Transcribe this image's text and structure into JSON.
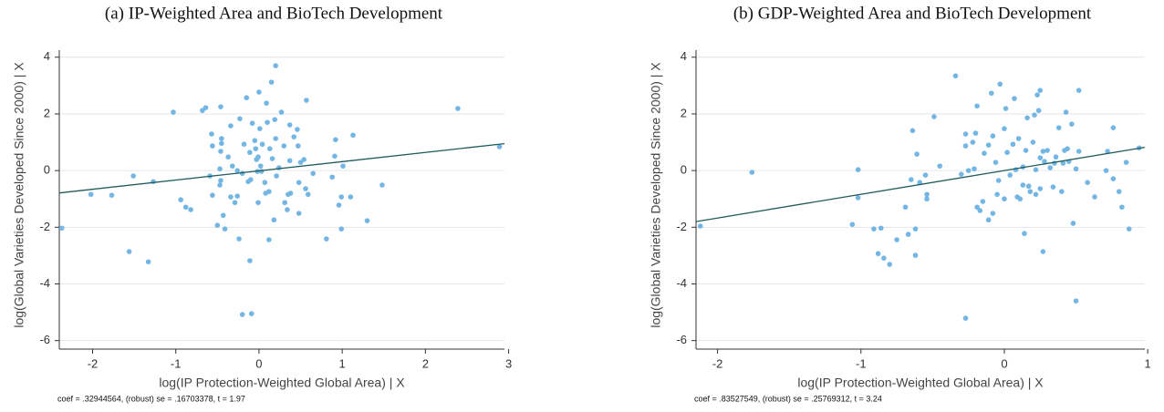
{
  "chart_data": [
    {
      "type": "scatter",
      "title": "(a) IP-Weighted Area and BioTech Development",
      "xlabel": "log(IP Protection-Weighted Global Area) | X",
      "ylabel": "log(Global Varieties Developed Since 2000) | X",
      "note": "coef = .32944564, (robust) se = .16703378, t = 1.97",
      "color": "#74b6e3",
      "x": [
        -2.37,
        -2.02,
        -1.77,
        -1.56,
        -1.51,
        -1.33,
        -1.27,
        -1.03,
        -0.94,
        -0.88,
        -0.82,
        -0.68,
        -0.64,
        -0.57,
        -0.56,
        -0.59,
        -0.56,
        -0.5,
        -0.46,
        -0.45,
        -0.45,
        -0.46,
        -0.47,
        -0.46,
        -0.47,
        -0.43,
        -0.41,
        -0.37,
        -0.34,
        -0.32,
        -0.34,
        -0.29,
        -0.26,
        -0.26,
        -0.24,
        -0.23,
        -0.2,
        -0.2,
        -0.18,
        -0.15,
        -0.13,
        -0.1,
        -0.11,
        -0.11,
        -0.09,
        -0.08,
        -0.05,
        -0.04,
        -0.03,
        -0.02,
        -0.01,
        -0.01,
        0.0,
        0.01,
        0.02,
        0.03,
        0.04,
        0.07,
        0.08,
        0.09,
        0.1,
        0.12,
        0.12,
        0.13,
        0.15,
        0.16,
        0.18,
        0.2,
        0.19,
        0.2,
        0.21,
        0.24,
        0.27,
        0.3,
        0.31,
        0.34,
        0.35,
        0.37,
        0.37,
        0.38,
        0.42,
        0.46,
        0.47,
        0.48,
        0.48,
        0.5,
        0.54,
        0.56,
        0.57,
        0.59,
        0.65,
        0.81,
        0.88,
        0.92,
        0.91,
        0.96,
        0.99,
        0.99,
        1.01,
        1.1,
        1.13,
        1.3,
        1.48,
        2.39,
        2.89
      ],
      "y": [
        -2.03,
        -0.84,
        -0.87,
        -2.86,
        -0.19,
        -3.22,
        -0.39,
        2.06,
        -1.03,
        -1.29,
        -1.38,
        2.12,
        2.22,
        1.29,
        0.87,
        -0.19,
        -0.87,
        -1.93,
        2.25,
        0.96,
        1.13,
        0.68,
        0.06,
        -0.35,
        -0.51,
        -1.58,
        -2.06,
        0.48,
        -0.93,
        0.16,
        1.58,
        -1.13,
        0.0,
        -0.9,
        -2.41,
        1.83,
        -0.1,
        -5.08,
        0.93,
        2.57,
        -0.39,
        -0.32,
        0.64,
        -3.18,
        -5.05,
        1.67,
        1.06,
        0.77,
        0.39,
        -0.03,
        0.48,
        -1.13,
        2.77,
        1.48,
        0.16,
        -0.03,
        0.93,
        -0.42,
        -0.8,
        2.38,
        1.7,
        -0.74,
        -2.44,
        0.77,
        3.12,
        0.42,
        -1.74,
        3.7,
        1.8,
        1.13,
        -0.19,
        0.1,
        2.06,
        0.87,
        -1.13,
        -1.38,
        -0.84,
        1.61,
        0.35,
        -0.8,
        1.19,
        1.45,
        0.87,
        -0.42,
        -1.51,
        0.29,
        0.39,
        -0.64,
        2.48,
        -0.84,
        -0.1,
        -2.41,
        -0.23,
        1.09,
        0.51,
        -1.22,
        -2.06,
        -0.93,
        0.16,
        -0.93,
        1.25,
        -1.77,
        -0.51,
        2.19,
        0.84
      ],
      "fit": {
        "x": [
          -2.4,
          2.95
        ],
        "y": [
          -0.79,
          0.95
        ],
        "color": "#1f5c5e"
      },
      "xlim": [
        -2.4,
        2.95
      ],
      "ylim": [
        -6.3,
        4.25
      ],
      "xticks": [
        -2,
        -1,
        0,
        1,
        2,
        3
      ],
      "yticks": [
        -6,
        -4,
        -2,
        0,
        2,
        4
      ],
      "grid": true
    },
    {
      "type": "scatter",
      "title": "(b) GDP-Weighted Area and BioTech Development",
      "xlabel": "log(IP Protection-Weighted Global Area) | X",
      "ylabel": "log(Global Varieties Developed Since 2000) | X",
      "note": "coef = .83527549, (robust) se = .25769312, t = 3.24",
      "color": "#74b6e3",
      "x": [
        -2.12,
        -1.76,
        -1.02,
        -1.02,
        -1.06,
        -0.91,
        -0.86,
        -0.88,
        -0.84,
        -0.8,
        -0.75,
        -0.69,
        -0.67,
        -0.65,
        -0.64,
        -0.61,
        -0.62,
        -0.62,
        -0.59,
        -0.55,
        -0.54,
        -0.54,
        -0.49,
        -0.45,
        -0.34,
        -0.3,
        -0.27,
        -0.27,
        -0.27,
        -0.25,
        -0.22,
        -0.21,
        -0.19,
        -0.2,
        -0.19,
        -0.17,
        -0.15,
        -0.14,
        -0.11,
        -0.11,
        -0.08,
        -0.09,
        -0.08,
        -0.06,
        -0.05,
        -0.04,
        -0.03,
        0.0,
        0.0,
        0.01,
        0.02,
        0.04,
        0.06,
        0.07,
        0.08,
        0.09,
        0.1,
        0.11,
        0.13,
        0.13,
        0.14,
        0.15,
        0.16,
        0.17,
        0.18,
        0.2,
        0.21,
        0.22,
        0.22,
        0.23,
        0.24,
        0.25,
        0.25,
        0.25,
        0.27,
        0.27,
        0.28,
        0.3,
        0.32,
        0.34,
        0.35,
        0.36,
        0.38,
        0.4,
        0.41,
        0.42,
        0.43,
        0.44,
        0.45,
        0.47,
        0.48,
        0.5,
        0.5,
        0.52,
        0.52,
        0.58,
        0.63,
        0.71,
        0.72,
        0.76,
        0.76,
        0.8,
        0.82,
        0.85,
        0.87,
        0.94
      ],
      "y": [
        -1.96,
        -0.06,
        0.03,
        -0.96,
        -1.9,
        -2.06,
        -2.03,
        -2.93,
        -3.09,
        -3.31,
        -2.44,
        -1.29,
        -2.25,
        -0.32,
        1.41,
        0.58,
        -2.06,
        -2.99,
        -0.42,
        -0.16,
        -1.0,
        -0.84,
        1.9,
        0.16,
        3.34,
        -0.13,
        1.29,
        0.87,
        -5.21,
        0.0,
        1.0,
        0.06,
        2.28,
        1.32,
        -1.29,
        -1.41,
        -1.09,
        0.61,
        0.9,
        -1.74,
        1.22,
        2.73,
        -1.51,
        0.29,
        -0.84,
        -0.35,
        3.05,
        -1.0,
        1.48,
        2.19,
        0.64,
        -0.16,
        0.93,
        2.54,
        0.03,
        -0.93,
        1.13,
        -1.0,
        0.13,
        -0.51,
        -2.22,
        0.71,
        1.86,
        -0.55,
        -0.74,
        1.0,
        1.96,
        -0.84,
        0.03,
        2.67,
        2.12,
        2.83,
        0.45,
        -0.64,
        0.68,
        -2.86,
        0.32,
        0.71,
        0.1,
        -0.58,
        0.26,
        0.48,
        1.51,
        -0.74,
        0.26,
        0.71,
        2.06,
        0.77,
        0.32,
        1.64,
        -1.86,
        0.06,
        -4.6,
        2.83,
        0.68,
        -0.42,
        -0.93,
        0.0,
        0.68,
        -0.29,
        1.51,
        -0.74,
        -1.29,
        0.29,
        -2.06,
        0.8
      ],
      "fit": {
        "x": [
          -2.15,
          0.98
        ],
        "y": [
          -1.8,
          0.82
        ],
        "color": "#1f5c5e"
      },
      "xlim": [
        -2.15,
        0.98
      ],
      "ylim": [
        -6.3,
        4.25
      ],
      "xticks": [
        -2,
        -1,
        0,
        1
      ],
      "yticks": [
        -6,
        -4,
        -2,
        0,
        2,
        4
      ],
      "grid": true
    }
  ]
}
